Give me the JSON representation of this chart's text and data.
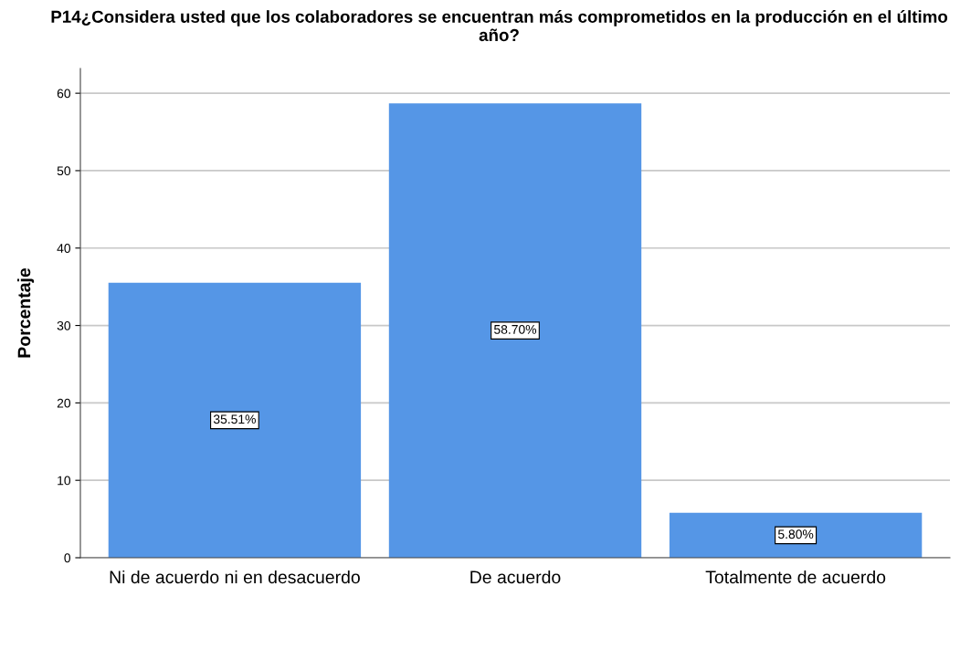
{
  "chart_data": {
    "type": "bar",
    "title": "P14¿Considera usted que los colaboradores se encuentran más comprometidos en la producción en el último año?",
    "ylabel": "Porcentaje",
    "categories": [
      "Ni de acuerdo ni en desacuerdo",
      "De acuerdo",
      "Totalmente de acuerdo"
    ],
    "values": [
      35.51,
      58.7,
      5.8
    ],
    "value_labels": [
      "35.51%",
      "58.70%",
      "5.80%"
    ],
    "color": "#5596e6",
    "ylim": [
      0,
      63.2
    ],
    "yticks": [
      0,
      10,
      20,
      30,
      40,
      50,
      60
    ],
    "grid": "y",
    "legend": false
  }
}
